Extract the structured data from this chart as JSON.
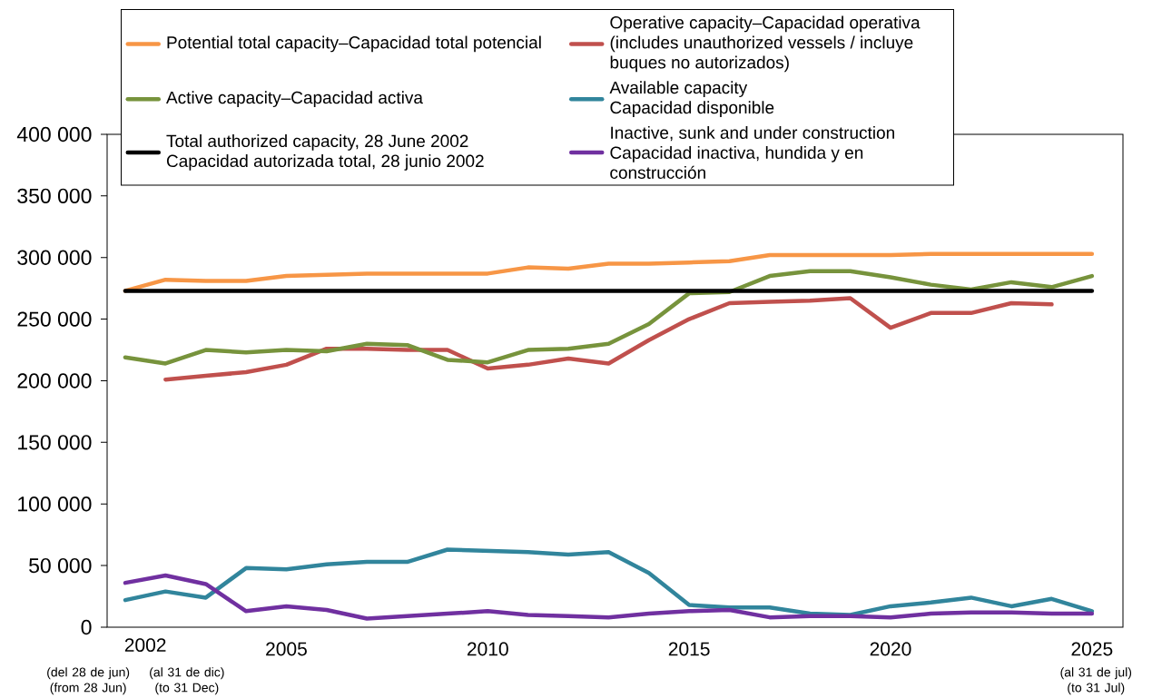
{
  "chart_data": {
    "type": "line",
    "categories": [
      null,
      null,
      null,
      null,
      "2005",
      null,
      null,
      null,
      null,
      "2010",
      null,
      null,
      null,
      null,
      "2015",
      null,
      null,
      null,
      null,
      "2020",
      null,
      null,
      null,
      null,
      "2025"
    ],
    "series": [
      {
        "name": "Potential total capacity–Capacidad total potencial",
        "color": "#f79646",
        "values": [
          273000,
          282000,
          281000,
          281000,
          285000,
          286000,
          287000,
          287000,
          287000,
          287000,
          292000,
          291000,
          295000,
          295000,
          296000,
          297000,
          302000,
          302000,
          302000,
          302000,
          303000,
          303000,
          303000,
          303000,
          303000
        ]
      },
      {
        "name": "Operative capacity–Capacidad operativa (includes unauthorized vessels / incluye buques no autorizados)",
        "color": "#c0504d",
        "values": [
          null,
          201000,
          204000,
          207000,
          213000,
          226000,
          226000,
          225000,
          225000,
          210000,
          213000,
          218000,
          214000,
          233000,
          250000,
          263000,
          264000,
          265000,
          267000,
          243000,
          255000,
          255000,
          263000,
          262000,
          null
        ]
      },
      {
        "name": "Active capacity–Capacidad activa",
        "color": "#77933c",
        "values": [
          219000,
          214000,
          225000,
          223000,
          225000,
          224000,
          230000,
          229000,
          217000,
          215000,
          225000,
          226000,
          230000,
          246000,
          271000,
          272000,
          285000,
          289000,
          289000,
          284000,
          278000,
          274000,
          280000,
          276000,
          285000
        ]
      },
      {
        "name": "Available capacity Capacidad disponible",
        "color": "#31859c",
        "values": [
          22000,
          29000,
          24000,
          48000,
          47000,
          51000,
          53000,
          53000,
          63000,
          62000,
          61000,
          59000,
          61000,
          44000,
          18000,
          16000,
          16000,
          11000,
          10000,
          17000,
          20000,
          24000,
          17000,
          23000,
          13000
        ]
      },
      {
        "name": "Total authorized capacity, 28 June 2002 Capacidad autorizada total, 28 junio 2002",
        "color": "#000000",
        "values": [
          273000,
          273000,
          273000,
          273000,
          273000,
          273000,
          273000,
          273000,
          273000,
          273000,
          273000,
          273000,
          273000,
          273000,
          273000,
          273000,
          273000,
          273000,
          273000,
          273000,
          273000,
          273000,
          273000,
          273000,
          273000
        ]
      },
      {
        "name": "Inactive, sunk and under construction Capacidad inactiva, hundida y en construcción",
        "color": "#7030a0",
        "values": [
          36000,
          42000,
          35000,
          13000,
          17000,
          14000,
          7000,
          9000,
          11000,
          13000,
          10000,
          9000,
          8000,
          11000,
          13000,
          14000,
          8000,
          9000,
          9000,
          8000,
          11000,
          12000,
          12000,
          11000,
          11000
        ]
      }
    ],
    "ylim": [
      0,
      400000
    ],
    "yticks": [
      0,
      {
        "value": 50000,
        "label": "50 000"
      },
      {
        "value": 100000,
        "label": "100 000"
      },
      {
        "value": 150000,
        "label": "150 000"
      },
      {
        "value": 200000,
        "label": "200 000"
      },
      {
        "value": 250000,
        "label": "250 000"
      },
      {
        "value": 300000,
        "label": "300 000"
      },
      {
        "value": 350000,
        "label": "350 000"
      },
      {
        "value": 400000,
        "label": "400 000"
      }
    ],
    "annotations": [
      "2002",
      "(del 28 de jun) (from 28 Jun)",
      "(al 31 de dic) (to 31 Dec)",
      "(al 31 de jul) (to 31 Jul)"
    ],
    "legend": "top",
    "marker": "none",
    "line_style": "solid"
  }
}
